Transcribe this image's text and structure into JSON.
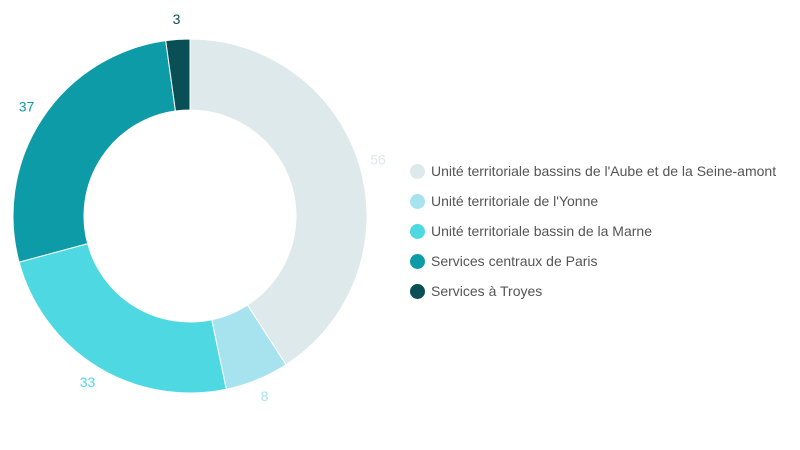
{
  "chart_data": {
    "type": "pie",
    "variant": "donut",
    "title": "",
    "legend_position": "right",
    "series": [
      {
        "values": [
          56,
          8,
          33,
          37,
          3
        ],
        "categories": [
          "Unité territoriale bassins de l'Aube et de la Seine-amont",
          "Unité territoriale de l'Yonne",
          "Unité territoriale bassin de la Marne",
          "Services centraux de Paris",
          "Services à Troyes"
        ]
      }
    ],
    "labels": [
      "56",
      "8",
      "33",
      "37",
      "3"
    ],
    "colors": [
      "#dde9ea",
      "#a7e3ef",
      "#4dd8e2",
      "#0e9ba8",
      "#0a4e56"
    ],
    "label_colors": [
      "#dde9ea",
      "#a7e3ef",
      "#4dd8e2",
      "#0e9ba8",
      "#0a4e56"
    ]
  }
}
